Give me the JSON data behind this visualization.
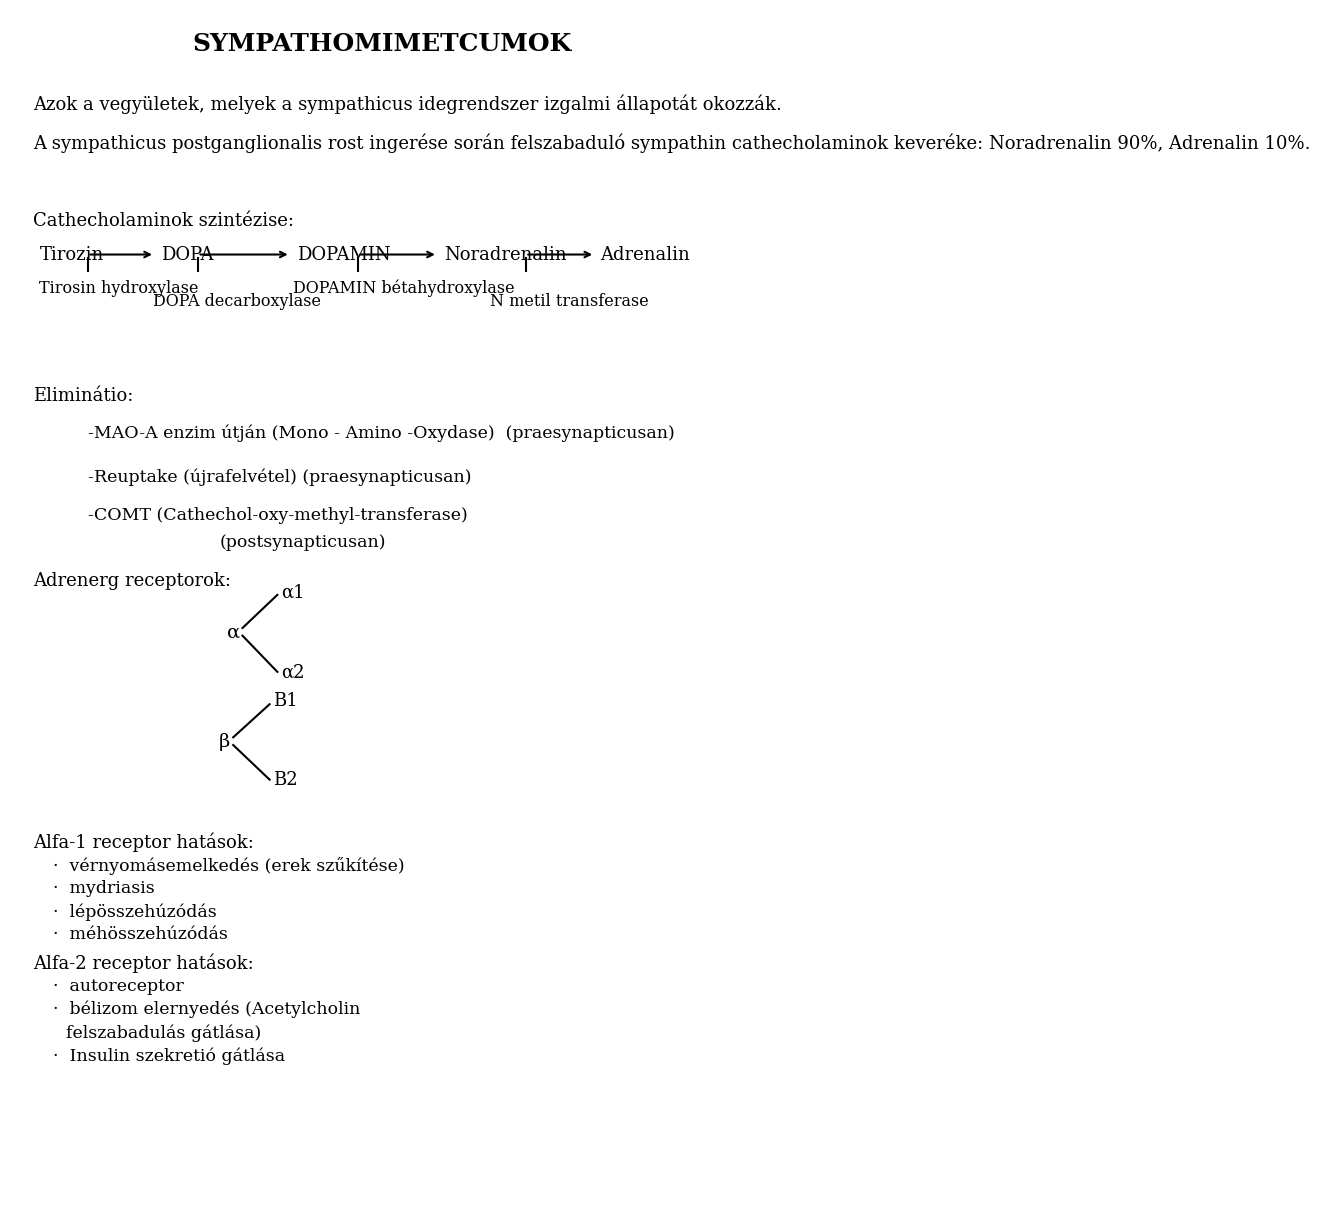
{
  "title": "SYMPATHOMIMETCUMOK",
  "bg_color": "#ffffff",
  "text_color": "#000000",
  "para1": "Azok a vegyületek, melyek a sympathicus idegrendszer izgalmi állapotát okozzák.",
  "para2": "A sympathicus postganglionalis rost ingerése során felszabaduló sympathin cathecholaminok keveréke: Noradrenalin 90%, Adrenalin 10%.",
  "synth_label": "Cathecholaminok szintézise:",
  "chain": [
    "Tirozin",
    "DOPA",
    "DOPAMIN",
    "Noradrenalin",
    "Adrenalin"
  ],
  "enzyme_below1": "Tirosin hydroxylase",
  "enzyme_below2": "DOPA decarboxylase",
  "enzyme_below3": "DOPAMIN bétahydroxylase",
  "enzyme_below4": "N metil transferase",
  "elim_label": "Eliminátio:",
  "elim1": "-MAO-A enzim útján (Mono - Amino -Oxydase)  (praesynapticusan)",
  "elim2": "-Reuptake (újrafelvétel) (praesynapticusan)",
  "elim3": "-COMT (Cathechol-oxy-methyl-transferase)",
  "elim3b": "(postsynapticusan)",
  "adreno_label": "Adrenerg receptorok:",
  "alpha_label": "α",
  "alpha1": "α1",
  "alpha2": "α2",
  "beta_label": "β",
  "beta1": "B1",
  "beta2": "B2",
  "alfa1_header": "Alfa-1 receptor hatások:",
  "alfa1_items": [
    "vérnyomásemelkedés (erek szűkítése)",
    "mydriasis",
    "lépösszehúzódás",
    "méhösszehúzódás"
  ],
  "alfa2_header": "Alfa-2 receptor hatások:",
  "alfa2_items": [
    "autoreceptor",
    "bélizom elernyedés (Acetylcholin felszabadulás gátlása)",
    "Insulin szekretió gátlása"
  ]
}
